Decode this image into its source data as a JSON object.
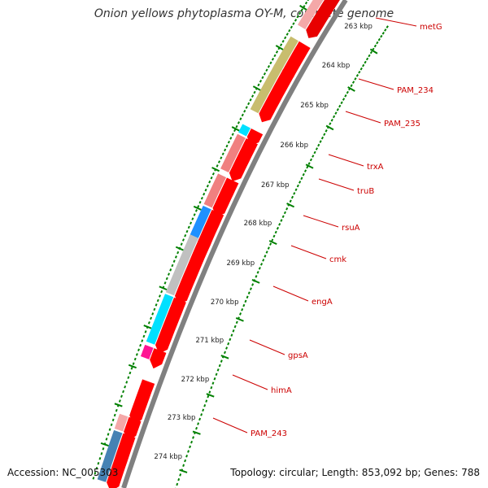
{
  "title": "Onion yellows phytoplasma OY-M, complete genome",
  "footer": {
    "accession": "Accession: NC_005303",
    "summary": "Topology: circular; Length: 853,092 bp; Genes: 788"
  },
  "colors": {
    "backbone": "#808080",
    "cds_forward": "#ff0000",
    "scale_ticks": "#008000",
    "label": "#cc0000"
  },
  "scale_labels": [
    "263 kbp",
    "264 kbp",
    "265 kbp",
    "266 kbp",
    "267 kbp",
    "268 kbp",
    "269 kbp",
    "270 kbp",
    "271 kbp",
    "272 kbp",
    "273 kbp",
    "274 kbp"
  ],
  "gene_labels": [
    {
      "name": "metG",
      "color": "#cc0000"
    },
    {
      "name": "PAM_234",
      "color": "#cc0000"
    },
    {
      "name": "PAM_235",
      "color": "#cc0000"
    },
    {
      "name": "trxA",
      "color": "#cc0000"
    },
    {
      "name": "truB",
      "color": "#cc0000"
    },
    {
      "name": "rsuA",
      "color": "#cc0000"
    },
    {
      "name": "cmk",
      "color": "#cc0000"
    },
    {
      "name": "engA",
      "color": "#cc0000"
    },
    {
      "name": "gpsA",
      "color": "#cc0000"
    },
    {
      "name": "himA",
      "color": "#cc0000"
    },
    {
      "name": "PAM_243",
      "color": "#cc0000"
    }
  ],
  "cog_colors": [
    "#f4a8a8",
    "#c8bd6e",
    "#00e0ff",
    "#f08080",
    "#1e90ff",
    "#c0c0c0",
    "#ff1493",
    "#4682b4"
  ]
}
